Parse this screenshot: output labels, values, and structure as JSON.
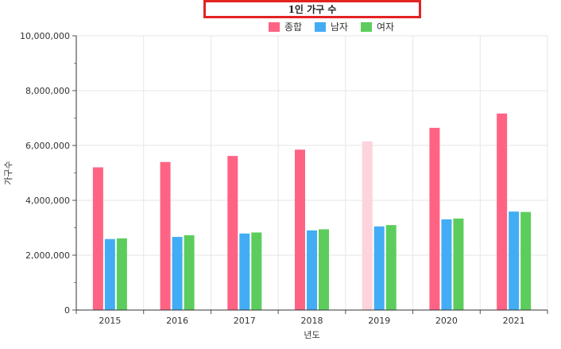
{
  "chart_data": {
    "type": "bar",
    "title": "1인 가구 수",
    "xlabel": "년도",
    "ylabel": "가구수",
    "categories": [
      "2015",
      "2016",
      "2017",
      "2018",
      "2019",
      "2020",
      "2021"
    ],
    "series": [
      {
        "name": "종합",
        "color": "#ff6384",
        "values": [
          5203440,
          5397615,
          5618677,
          5848594,
          6147516,
          6643354,
          7165788
        ]
      },
      {
        "name": "남자",
        "color": "#36a2eb",
        "values": [
          2589000,
          2667000,
          2790000,
          2905000,
          3049000,
          3307000,
          3590000
        ]
      },
      {
        "name": "여자",
        "color": "#4bc0c0",
        "values": [
          2614000,
          2730000,
          2828000,
          2944000,
          3098000,
          3336000,
          3576000
        ]
      }
    ],
    "ylim": [
      0,
      10000000
    ],
    "yticks": [
      0,
      2000000,
      4000000,
      6000000,
      8000000,
      10000000
    ],
    "ytick_labels": [
      "0",
      "2,000,000",
      "4,000,000",
      "6,000,000",
      "8,000,000",
      "10,000,000"
    ],
    "highlight": {
      "series": "종합",
      "category": "2019"
    },
    "legend_position": "top",
    "grid": true
  }
}
